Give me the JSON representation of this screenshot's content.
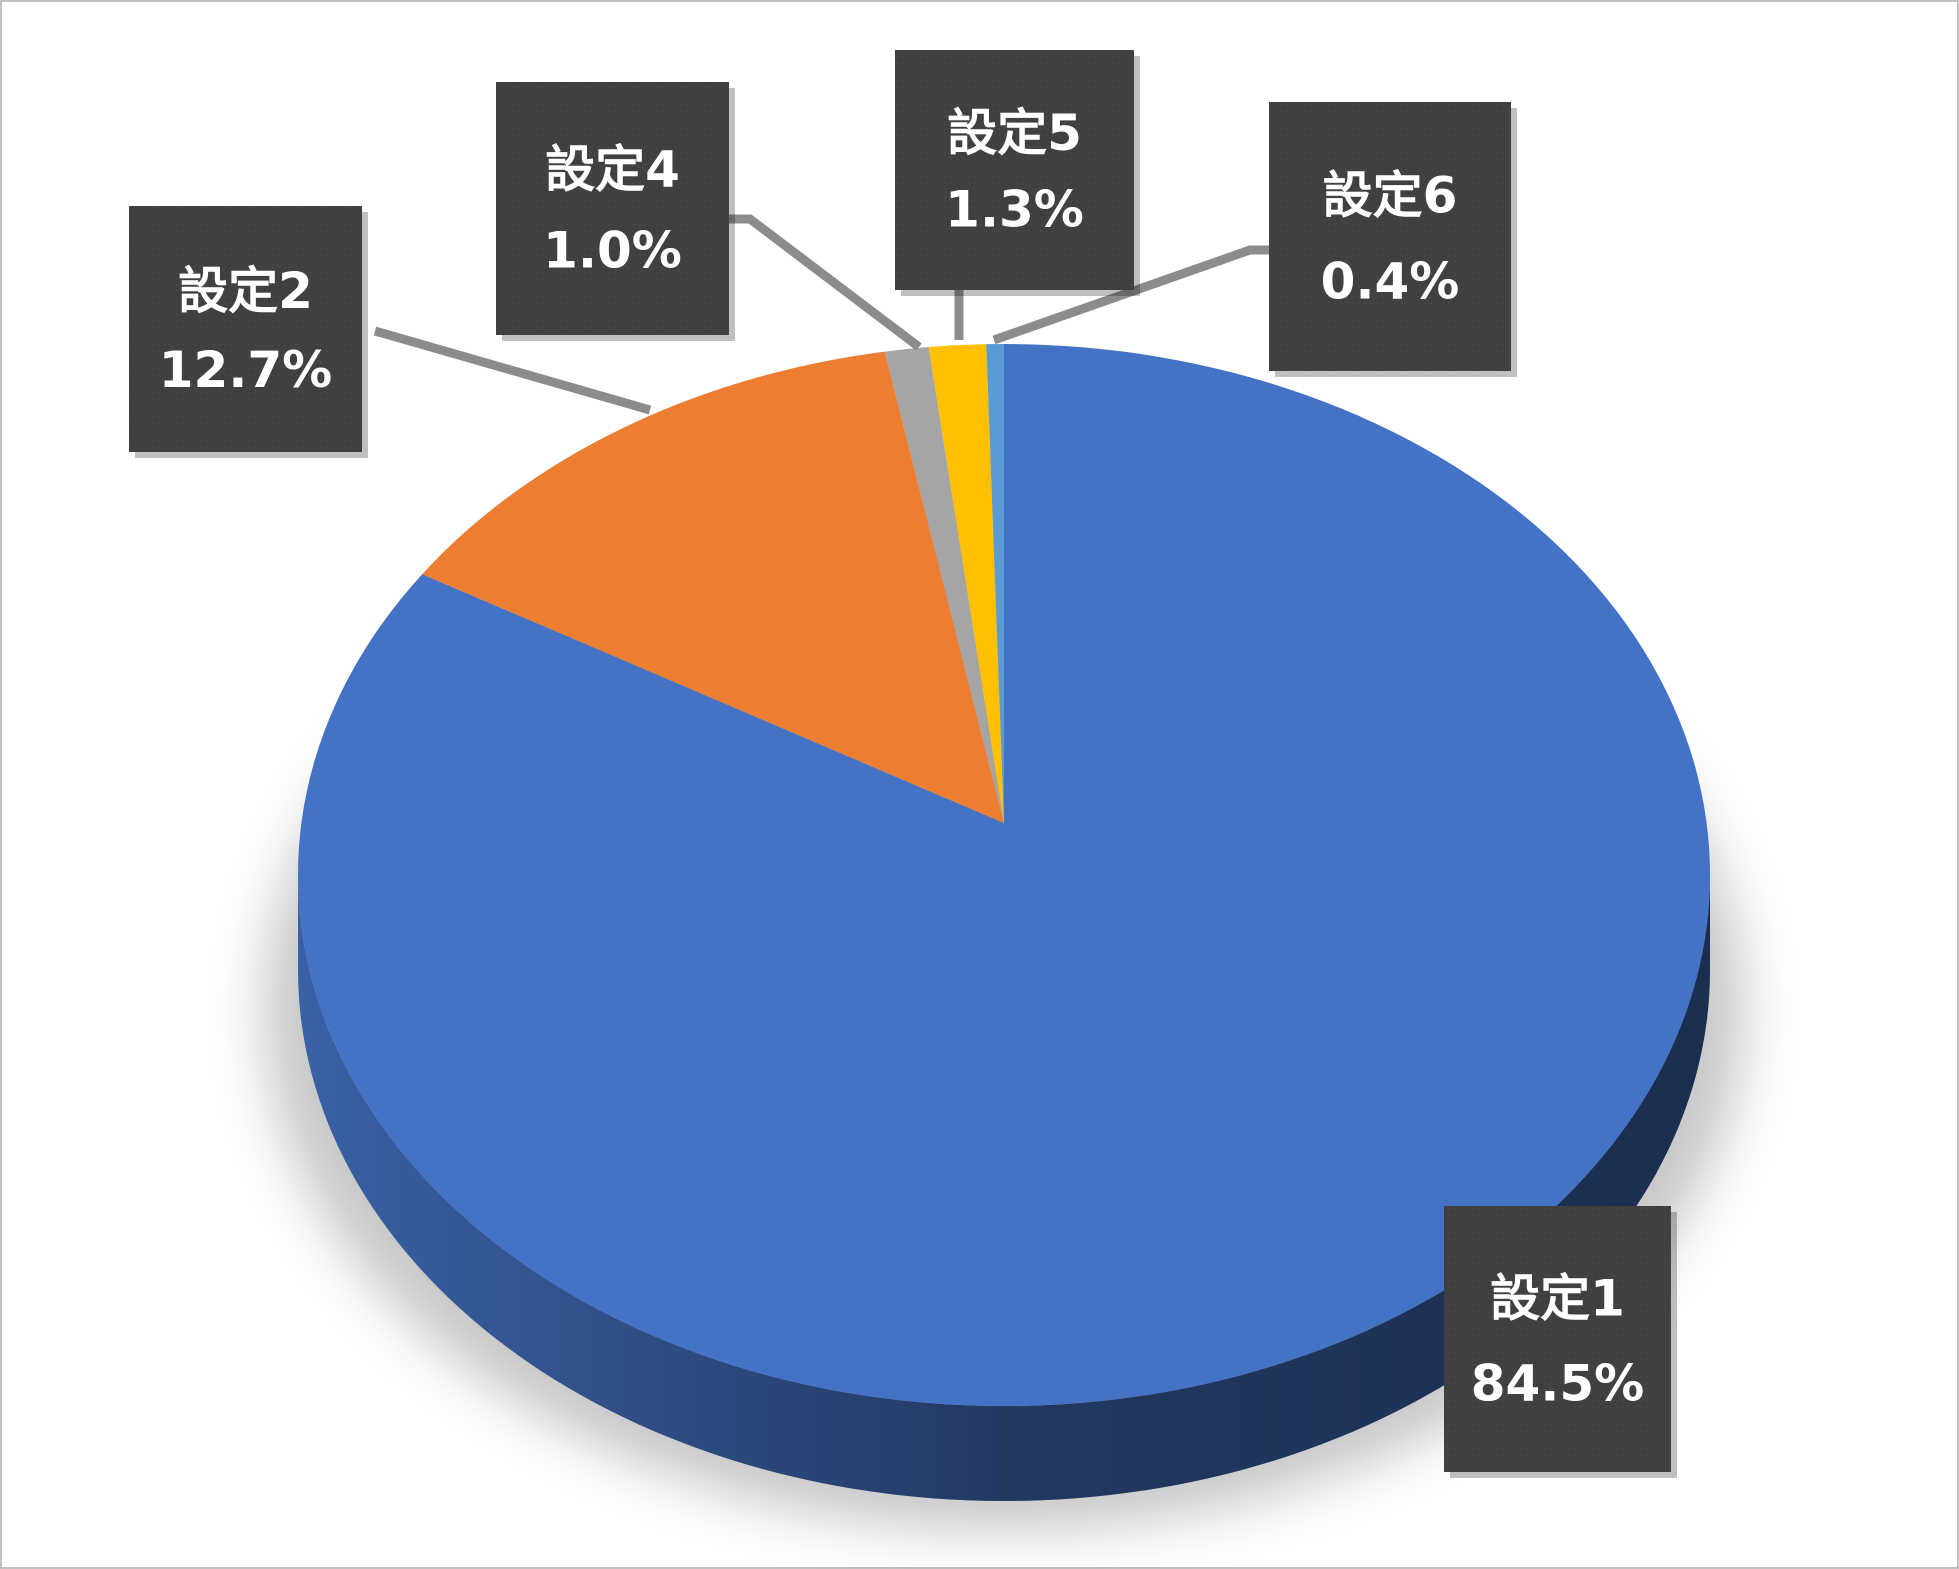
{
  "chart_data": {
    "type": "pie",
    "categories": [
      "設定1",
      "設定2",
      "設定4",
      "設定5",
      "設定6"
    ],
    "values": [
      84.5,
      12.7,
      1.0,
      1.3,
      0.4
    ],
    "value_labels": [
      "84.5%",
      "12.7%",
      "1.0%",
      "1.3%",
      "0.4%"
    ],
    "colors": [
      "#4472c4",
      "#ed7d31",
      "#a5a5a5",
      "#ffc000",
      "#5b9bd5"
    ]
  }
}
